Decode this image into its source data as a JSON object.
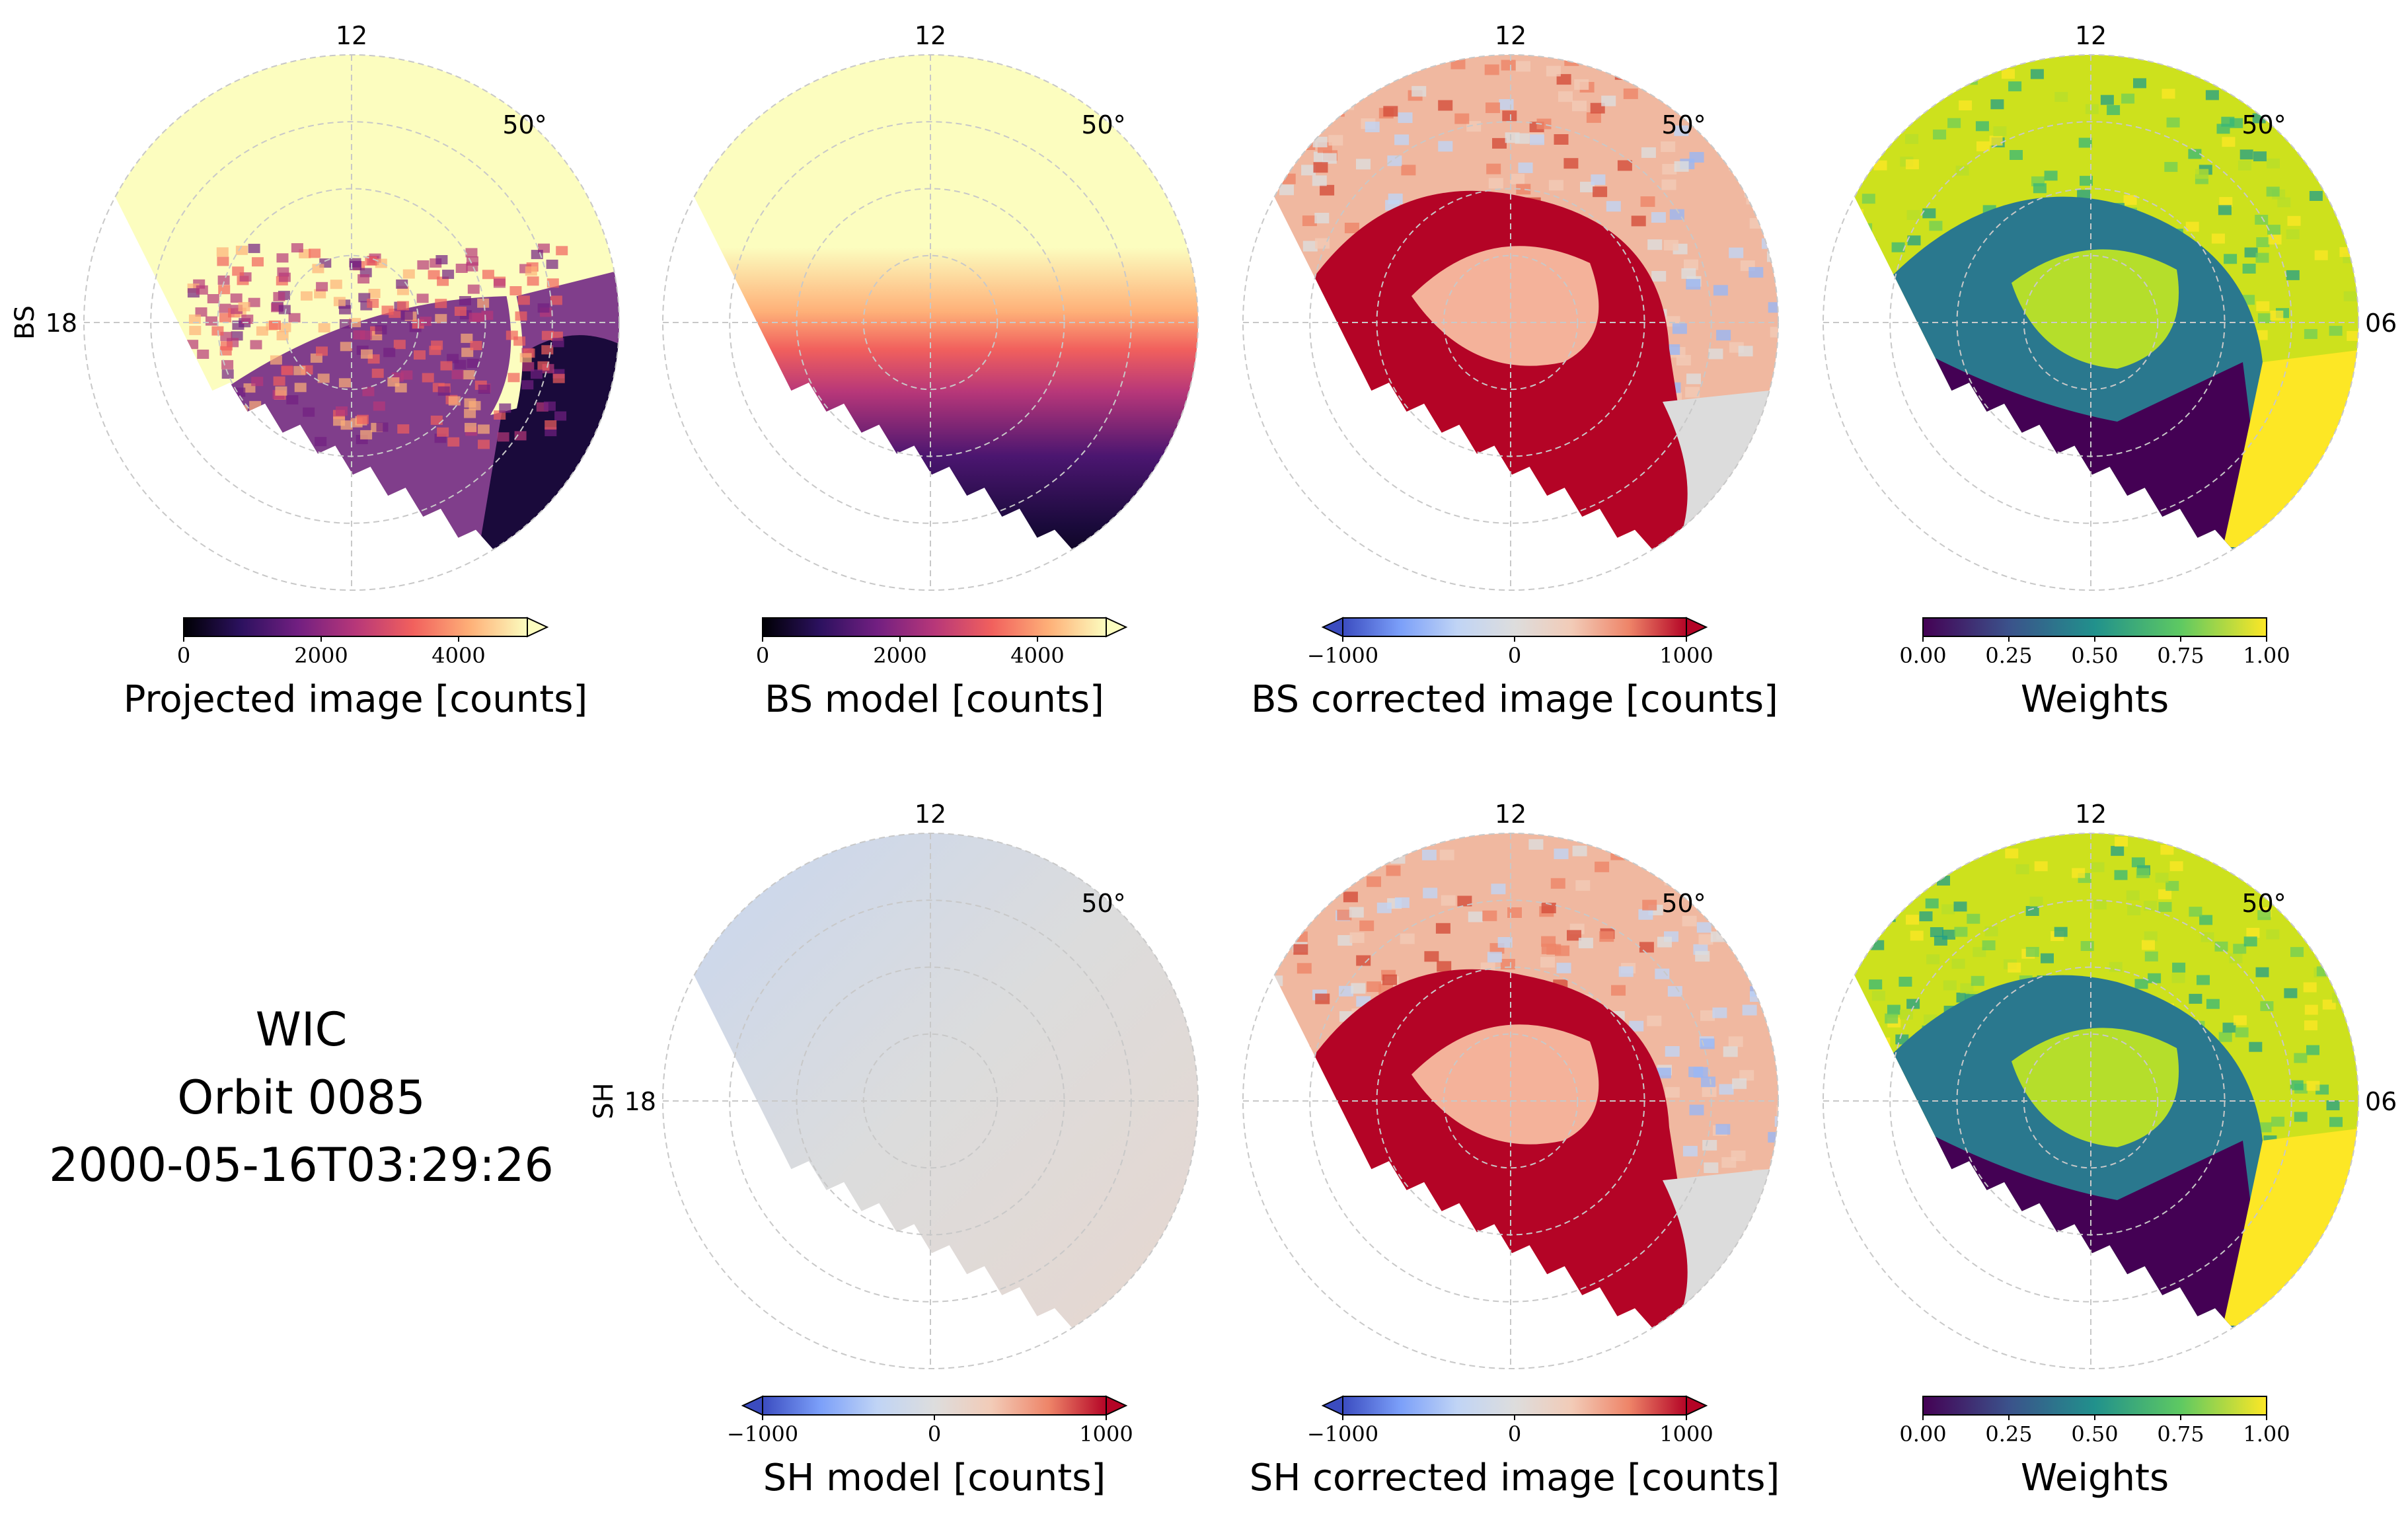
{
  "figure": {
    "info": {
      "line1": "WIC",
      "line2": "Orbit 0085",
      "line3": "2000-05-16T03:29:26"
    },
    "row_labels": [
      "BS",
      "SH"
    ],
    "colors": {
      "grid": "#c8c8c8",
      "outline": "#000000"
    }
  },
  "chart_data": [
    {
      "type": "heatmap",
      "projection": "polar",
      "title": "Projected image [counts]",
      "colormap": "magma",
      "colorbar_range": [
        0,
        5000
      ],
      "colorbar_ticks": [
        "0",
        "2000",
        "4000"
      ],
      "colorbar_extend": "max",
      "row_label": "BS",
      "mlt_labels": {
        "top": "12",
        "left": "18",
        "right": ""
      },
      "lat_label": "50°",
      "grid": true
    },
    {
      "type": "heatmap",
      "projection": "polar",
      "title": "BS model [counts]",
      "colormap": "magma",
      "colorbar_range": [
        0,
        5000
      ],
      "colorbar_ticks": [
        "0",
        "2000",
        "4000"
      ],
      "colorbar_extend": "max",
      "mlt_labels": {
        "top": "12",
        "left": "",
        "right": ""
      },
      "lat_label": "50°",
      "grid": true
    },
    {
      "type": "heatmap",
      "projection": "polar",
      "title": "BS corrected image [counts]",
      "colormap": "coolwarm",
      "colorbar_range": [
        -1000,
        1000
      ],
      "colorbar_ticks": [
        "−1000",
        "0",
        "1000"
      ],
      "colorbar_extend": "both",
      "mlt_labels": {
        "top": "12",
        "left": "",
        "right": ""
      },
      "lat_label": "50°",
      "grid": true
    },
    {
      "type": "heatmap",
      "projection": "polar",
      "title": "Weights",
      "colormap": "viridis",
      "colorbar_range": [
        0,
        1
      ],
      "colorbar_ticks": [
        "0.00",
        "0.25",
        "0.50",
        "0.75",
        "1.00"
      ],
      "colorbar_extend": "neither",
      "mlt_labels": {
        "top": "12",
        "left": "",
        "right": "06"
      },
      "lat_label": "50°",
      "grid": true
    },
    {
      "type": "heatmap",
      "projection": "polar",
      "title": "SH model [counts]",
      "colormap": "coolwarm",
      "colorbar_range": [
        -1000,
        1000
      ],
      "colorbar_ticks": [
        "−1000",
        "0",
        "1000"
      ],
      "colorbar_extend": "both",
      "row_label": "SH",
      "mlt_labels": {
        "top": "12",
        "left": "18",
        "right": ""
      },
      "lat_label": "50°",
      "grid": true
    },
    {
      "type": "heatmap",
      "projection": "polar",
      "title": "SH corrected image [counts]",
      "colormap": "coolwarm",
      "colorbar_range": [
        -1000,
        1000
      ],
      "colorbar_ticks": [
        "−1000",
        "0",
        "1000"
      ],
      "colorbar_extend": "both",
      "mlt_labels": {
        "top": "12",
        "left": "",
        "right": ""
      },
      "lat_label": "50°",
      "grid": true
    },
    {
      "type": "heatmap",
      "projection": "polar",
      "title": "Weights",
      "colormap": "viridis",
      "colorbar_range": [
        0,
        1
      ],
      "colorbar_ticks": [
        "0.00",
        "0.25",
        "0.50",
        "0.75",
        "1.00"
      ],
      "colorbar_extend": "neither",
      "mlt_labels": {
        "top": "12",
        "left": "",
        "right": "06"
      },
      "lat_label": "50°",
      "grid": true
    }
  ]
}
